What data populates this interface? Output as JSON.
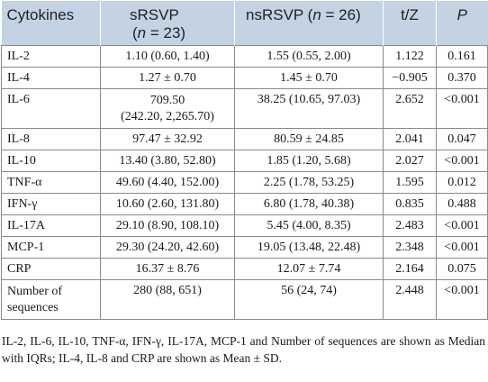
{
  "table": {
    "headers": {
      "col1": "Cytokines",
      "col2_line1": "sRSVP",
      "col2_line2_pre": "(",
      "col2_n": "n",
      "col2_line2_post": " = 23)",
      "col3_pre": "nsRSVP (",
      "col3_n": "n",
      "col3_post": " = 26)",
      "col4": "t/Z",
      "col5": "P"
    },
    "rows": [
      {
        "name": "IL-2",
        "srsvp": "1.10 (0.60, 1.40)",
        "nsrsvp": "1.55 (0.55, 2.00)",
        "tz": "1.122",
        "p": "0.161"
      },
      {
        "name": "IL-4",
        "srsvp": "1.27 ± 0.70",
        "nsrsvp": "1.45 ± 0.70",
        "tz": "−0.905",
        "p": "0.370"
      },
      {
        "name": "IL-6",
        "srsvp_line1": "709.50",
        "srsvp_line2": "(242.20, 2,265.70)",
        "nsrsvp": "38.25 (10.65, 97.03)",
        "tz": "2.652",
        "p": "<0.001"
      },
      {
        "name": "IL-8",
        "srsvp": "97.47 ± 32.92",
        "nsrsvp": "80.59 ± 24.85",
        "tz": "2.041",
        "p": "0.047"
      },
      {
        "name": "IL-10",
        "srsvp": "13.40 (3.80, 52.80)",
        "nsrsvp": "1.85 (1.20, 5.68)",
        "tz": "2.027",
        "p": "<0.001"
      },
      {
        "name": "TNF-α",
        "srsvp": "49.60 (4.40, 152.00)",
        "nsrsvp": "2.25 (1.78, 53.25)",
        "tz": "1.595",
        "p": "0.012"
      },
      {
        "name": "IFN-γ",
        "srsvp": "10.60 (2.60, 131.80)",
        "nsrsvp": "6.80 (1.78, 40.38)",
        "tz": "0.835",
        "p": "0.488"
      },
      {
        "name": "IL-17A",
        "srsvp": "29.10 (8.90, 108.10)",
        "nsrsvp": "5.45 (4.00, 8.35)",
        "tz": "2.483",
        "p": "<0.001"
      },
      {
        "name": "MCP-1",
        "srsvp": "29.30 (24.20, 42.60)",
        "nsrsvp": "19.05 (13.48, 22.48)",
        "tz": "2.348",
        "p": "<0.001"
      },
      {
        "name": "CRP",
        "srsvp": "16.37 ± 8.76",
        "nsrsvp": "12.07 ± 7.74",
        "tz": "2.164",
        "p": "0.075"
      },
      {
        "name_line1": "Number of",
        "name_line2": "sequences",
        "srsvp": "280 (88, 651)",
        "nsrsvp": "56 (24, 74)",
        "tz": "2.448",
        "p": "<0.001"
      }
    ]
  },
  "footnote": "IL-2, IL-6, IL-10, TNF-α, IFN-γ, IL-17A, MCP-1 and Number of sequences are shown as Median with IQRs; IL-4, IL-8 and CRP are shown as Mean ± SD.",
  "colors": {
    "header_bg": "#c4d3e3",
    "border": "#8a8a8a"
  }
}
